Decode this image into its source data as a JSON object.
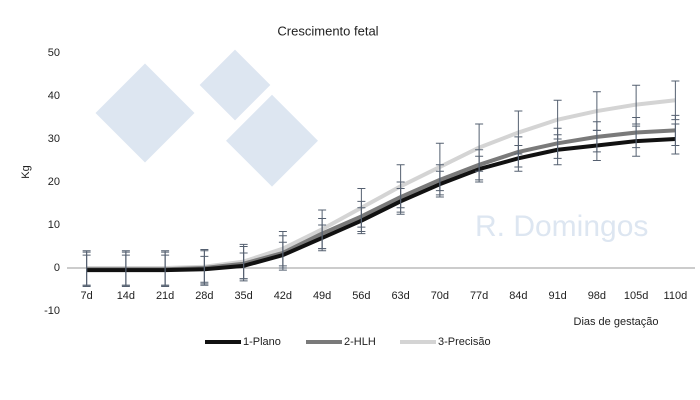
{
  "chart_data": {
    "type": "line",
    "title": "Crescimento fetal",
    "y_label": "Kg",
    "x_label": "Dias de gestação",
    "watermark": "R. Domingos",
    "categories": [
      "7d",
      "14d",
      "21d",
      "28d",
      "35d",
      "42d",
      "49d",
      "56d",
      "63d",
      "70d",
      "77d",
      "84d",
      "91d",
      "98d",
      "105d",
      "110d"
    ],
    "series": [
      {
        "name": "1-Plano",
        "color": "#111111",
        "values": [
          -0.5,
          -0.5,
          -0.5,
          -0.3,
          0.5,
          3,
          7,
          11,
          15.5,
          19.5,
          23,
          25.5,
          27.5,
          28.5,
          29.5,
          30
        ],
        "errors": [
          3.5,
          3.5,
          3.5,
          3,
          3,
          3,
          3,
          3,
          3,
          3,
          3,
          3,
          3.5,
          3.5,
          3.5,
          3.5
        ]
      },
      {
        "name": "2-HLH",
        "color": "#7a7a7a",
        "values": [
          -0.3,
          -0.3,
          -0.3,
          0,
          1,
          3.5,
          8,
          12,
          16.5,
          20.5,
          24,
          27,
          29,
          30.5,
          31.5,
          32
        ],
        "errors": [
          4,
          4,
          4,
          4,
          4,
          4,
          3.5,
          3.5,
          3.5,
          3.5,
          3.5,
          3.5,
          3.5,
          3.5,
          3.5,
          3.5
        ]
      },
      {
        "name": "3-Precisão",
        "color": "#d4d4d4",
        "values": [
          0,
          0,
          0,
          0.3,
          1.5,
          4.5,
          9,
          14,
          19,
          23.5,
          28,
          31.5,
          34.5,
          36.5,
          38,
          39
        ],
        "errors": [
          4,
          4,
          4,
          4,
          4,
          4,
          4.5,
          4.5,
          5,
          5.5,
          5.5,
          5,
          4.5,
          4.5,
          4.5,
          4.5
        ]
      }
    ],
    "ylim": [
      -10,
      50
    ],
    "yticks": [
      -10,
      0,
      10,
      20,
      30,
      40,
      50
    ],
    "grid": false
  }
}
